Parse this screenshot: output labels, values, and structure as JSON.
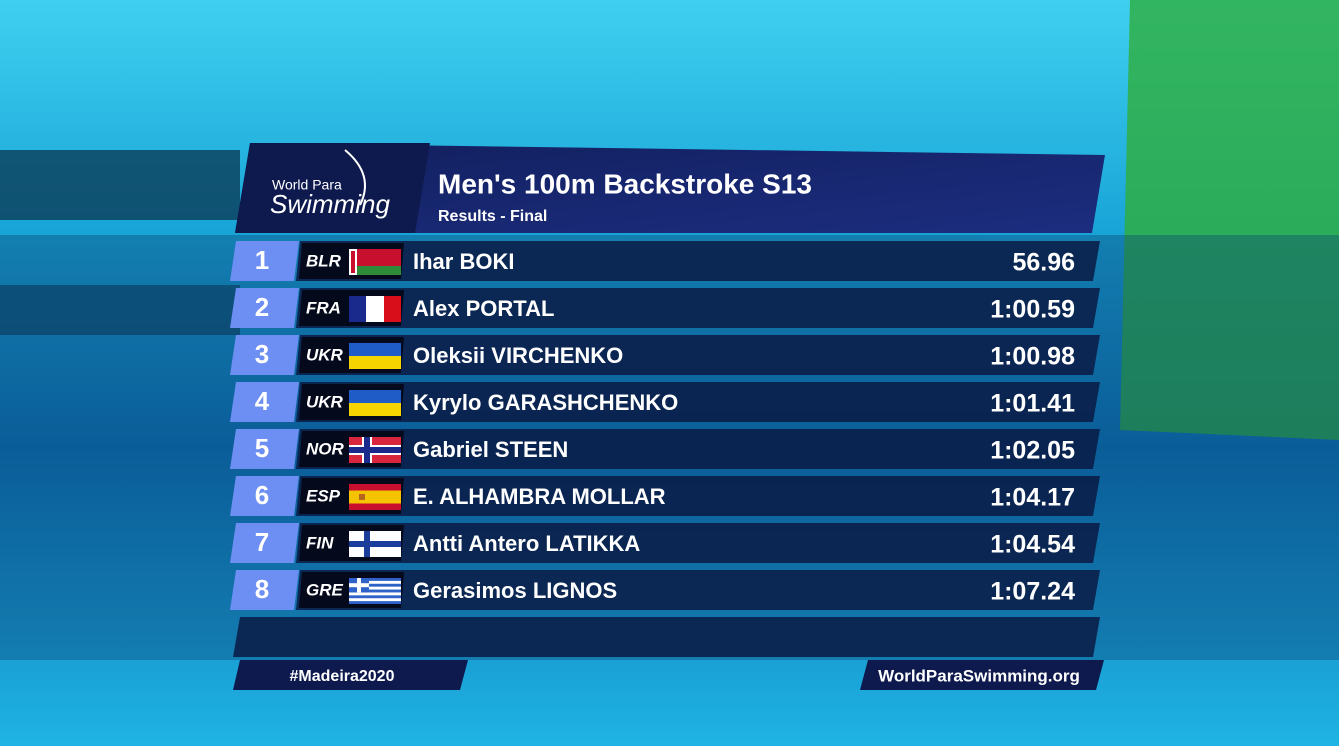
{
  "logo": {
    "line1": "World Para",
    "line2": "Swimming"
  },
  "header": {
    "title": "Men's 100m Backstroke S13",
    "subtitle": "Results - Final"
  },
  "results": [
    {
      "rank": 1,
      "code": "BLR",
      "name": "Ihar BOKI",
      "time": "56.96"
    },
    {
      "rank": 2,
      "code": "FRA",
      "name": "Alex PORTAL",
      "time": "1:00.59"
    },
    {
      "rank": 3,
      "code": "UKR",
      "name": "Oleksii VIRCHENKO",
      "time": "1:00.98"
    },
    {
      "rank": 4,
      "code": "UKR",
      "name": "Kyrylo GARASHCHENKO",
      "time": "1:01.41"
    },
    {
      "rank": 5,
      "code": "NOR",
      "name": "Gabriel STEEN",
      "time": "1:02.05"
    },
    {
      "rank": 6,
      "code": "ESP",
      "name": "E. ALHAMBRA MOLLAR",
      "time": "1:04.17"
    },
    {
      "rank": 7,
      "code": "FIN",
      "name": "Antti Antero LATIKKA",
      "time": "1:04.54"
    },
    {
      "rank": 8,
      "code": "GRE",
      "name": "Gerasimos LIGNOS",
      "time": "1:07.24"
    }
  ],
  "footer": {
    "hashtag": "#Madeira2020",
    "website": "WorldParaSwimming.org"
  }
}
